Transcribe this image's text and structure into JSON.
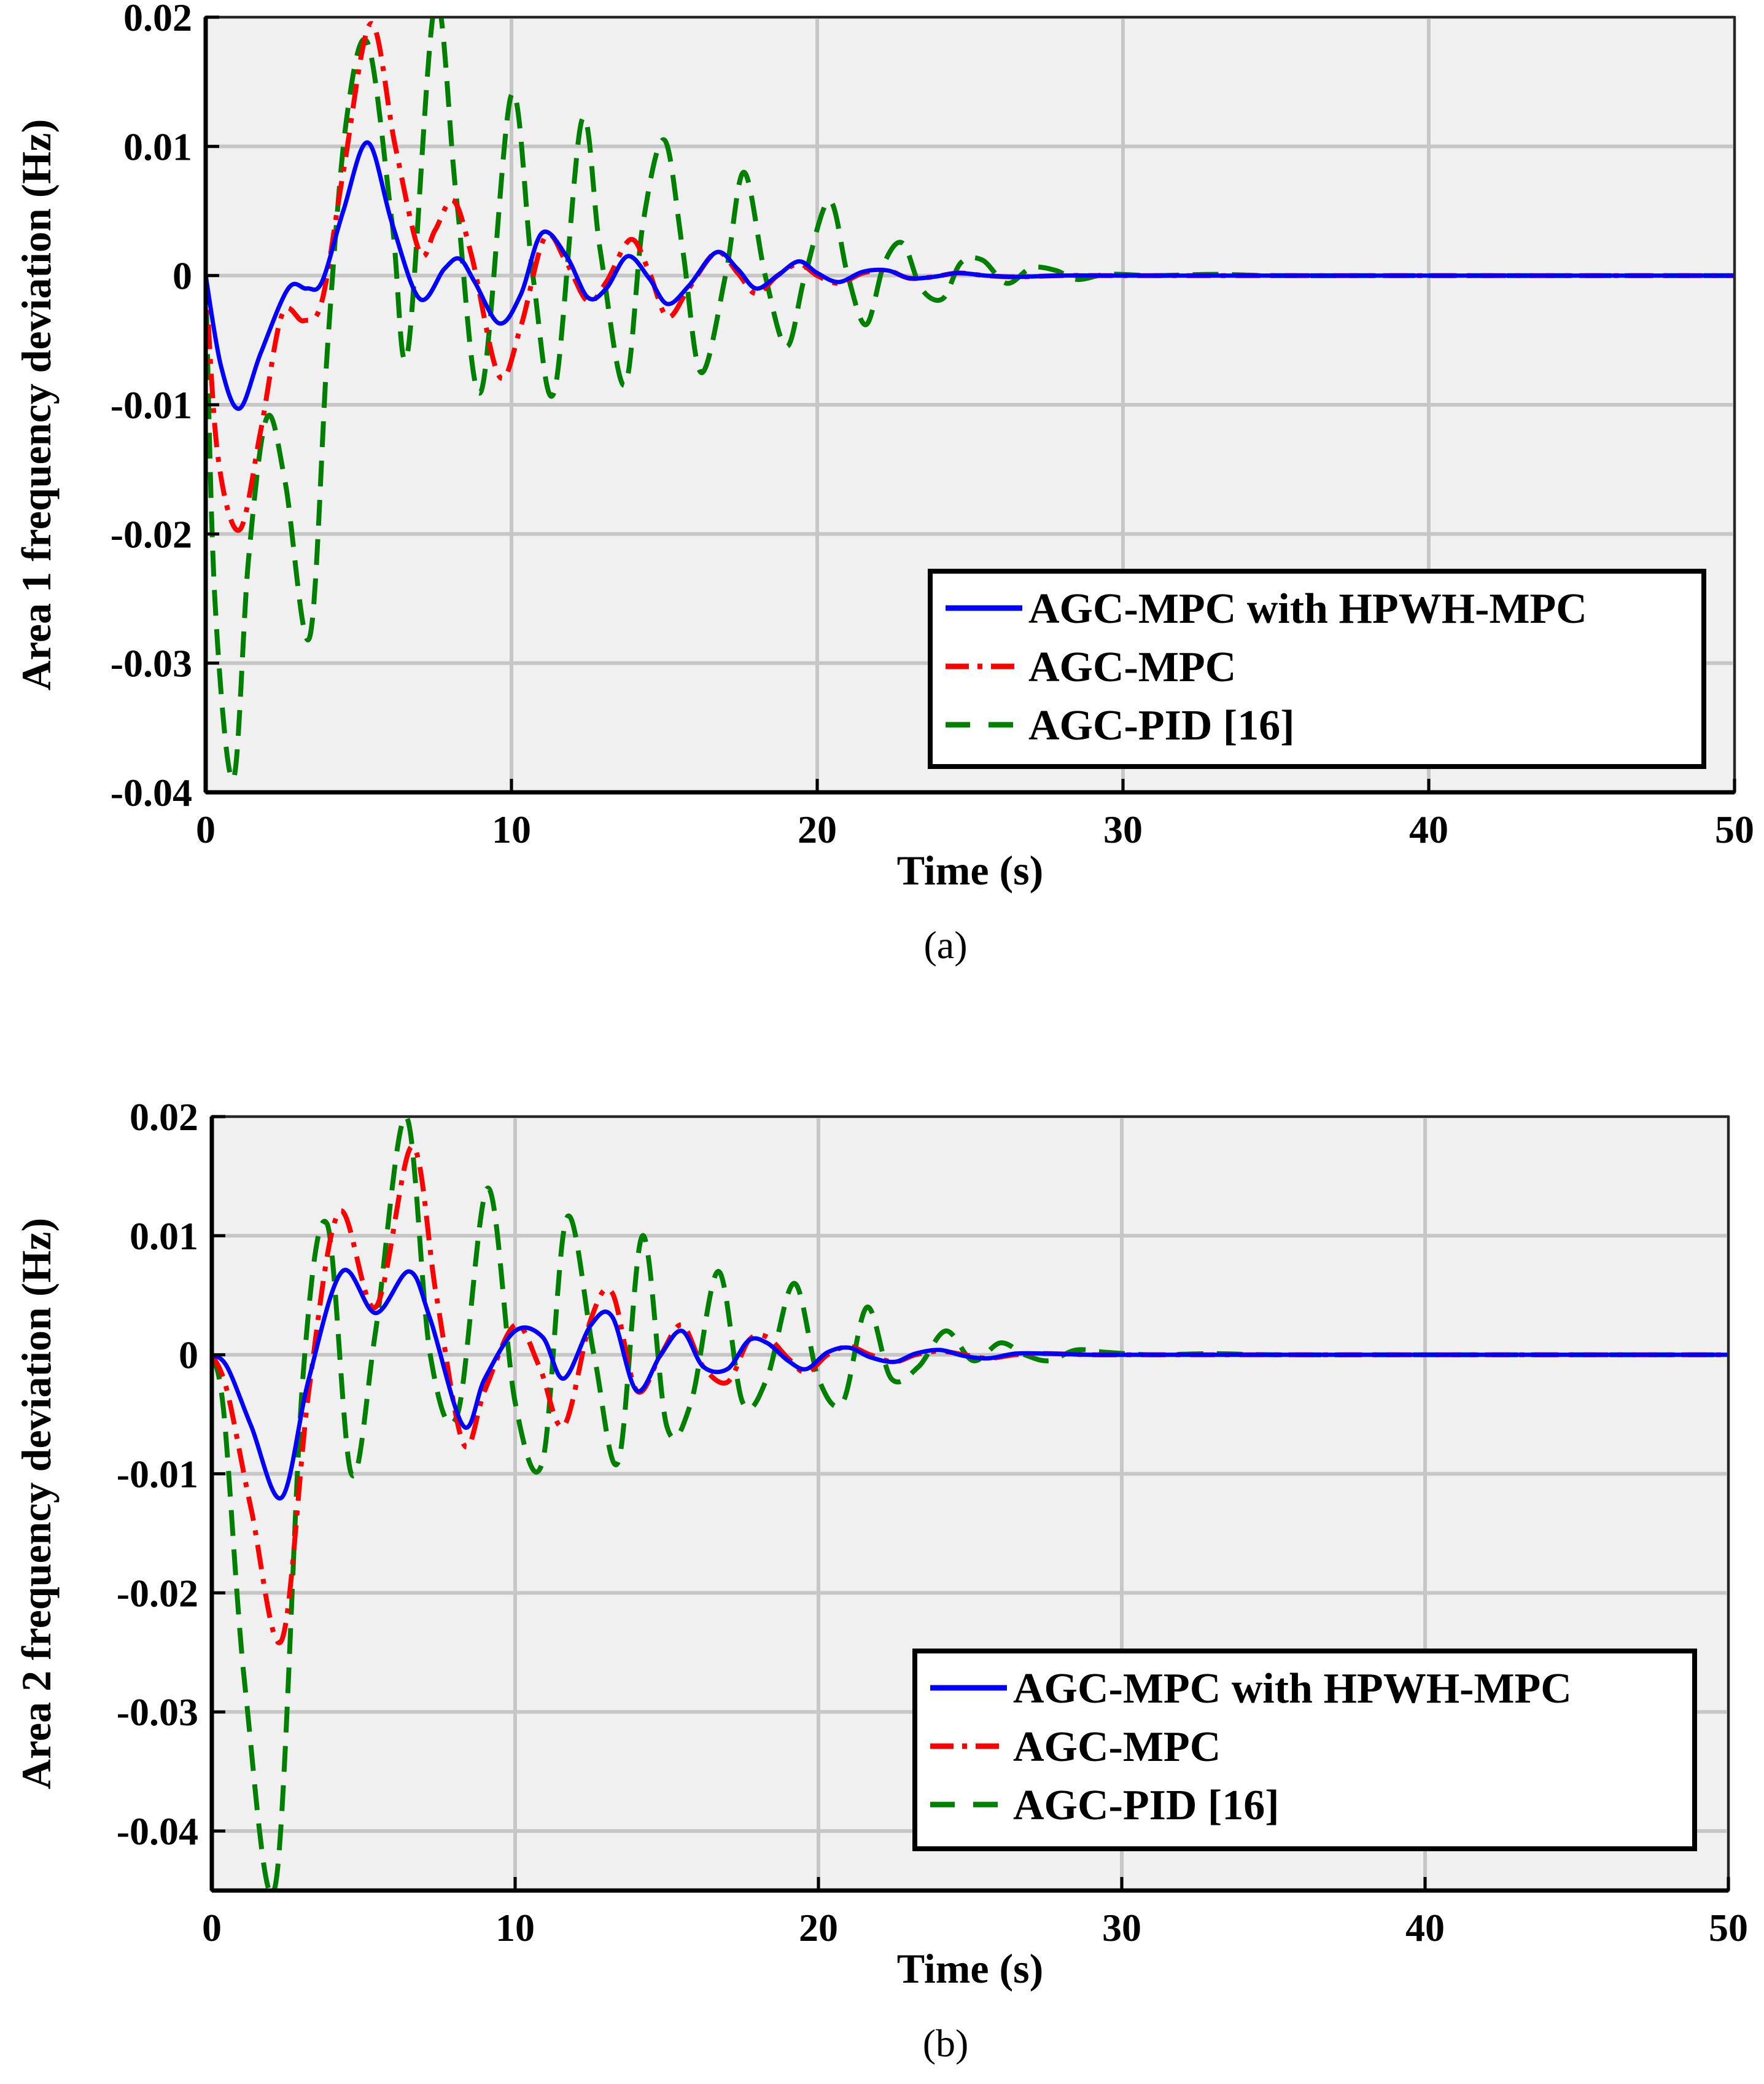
{
  "chart_data": [
    {
      "type": "line",
      "caption": "(a)",
      "xlabel": "Time (s)",
      "ylabel": "Area 1 frequency deviation (Hz)",
      "xlim": [
        0,
        50
      ],
      "ylim": [
        -0.04,
        0.02
      ],
      "xticks": [
        0,
        10,
        20,
        30,
        40,
        50
      ],
      "xtick_labels": [
        "0",
        "10",
        "20",
        "30",
        "40",
        "50"
      ],
      "yticks": [
        0.02,
        0.01,
        0,
        -0.01,
        -0.02,
        -0.03,
        -0.04
      ],
      "ytick_labels": [
        "0.02",
        "0.01",
        "0",
        "-0.01",
        "-0.02",
        "-0.03",
        "-0.04"
      ],
      "grid": true,
      "legend_position": "lower-right",
      "series": [
        {
          "name": "AGC-MPC with HPWH-MPC",
          "color": "#0000ff",
          "style": "solid",
          "x": [
            0,
            0.5,
            1.1,
            1.8,
            2.7,
            3.3,
            3.8,
            4.5,
            5.3,
            6.1,
            7.0,
            7.8,
            8.3,
            8.8,
            9.6,
            10.3,
            11.0,
            11.8,
            12.5,
            13.1,
            13.8,
            14.5,
            15.1,
            15.8,
            16.7,
            17.4,
            18.0,
            18.7,
            19.4,
            20.0,
            20.7,
            21.5,
            22.3,
            23.0,
            23.8,
            24.6,
            25.5,
            26.5,
            28,
            30,
            35,
            40,
            45,
            50
          ],
          "values": [
            0,
            -0.007,
            -0.0103,
            -0.006,
            -0.001,
            -0.001,
            -0.0005,
            0.005,
            0.0103,
            0.004,
            -0.0018,
            0.0005,
            0.0013,
            -0.0005,
            -0.0037,
            -0.0015,
            0.0033,
            0.0015,
            -0.0017,
            -0.001,
            0.0015,
            -0.0002,
            -0.0022,
            -0.0008,
            0.0018,
            0.0005,
            -0.001,
            0.0,
            0.0011,
            0.0002,
            -0.0005,
            0.0003,
            0.0004,
            -0.0002,
            -0.0001,
            0.0002,
            0.0,
            -0.0001,
            0.0,
            0.0,
            0.0,
            0.0,
            0.0,
            0.0
          ]
        },
        {
          "name": "AGC-MPC",
          "color": "#ff0000",
          "style": "dash-dot",
          "x": [
            0,
            0.4,
            1.1,
            1.8,
            2.5,
            3.2,
            3.8,
            4.5,
            5.4,
            6.2,
            7.0,
            7.5,
            8.1,
            8.7,
            9.6,
            10.3,
            11.1,
            11.8,
            12.5,
            13.1,
            13.9,
            14.5,
            15.1,
            15.8,
            16.7,
            17.4,
            18.0,
            18.7,
            19.4,
            20.0,
            20.7,
            21.5,
            22.3,
            23.0,
            23.8,
            24.6,
            25.5,
            26.5,
            28,
            30,
            35,
            40,
            45,
            50
          ],
          "values": [
            0,
            -0.014,
            -0.0197,
            -0.012,
            -0.003,
            -0.0035,
            -0.002,
            0.008,
            0.0195,
            0.01,
            0.0018,
            0.0035,
            0.0058,
            0.0015,
            -0.0078,
            -0.004,
            0.003,
            0.001,
            -0.002,
            -0.0005,
            0.0028,
            0.0003,
            -0.0032,
            -0.001,
            0.0018,
            0.0002,
            -0.0014,
            0.0,
            0.0009,
            0.0,
            -0.0006,
            0.0002,
            0.0004,
            -0.0002,
            -0.0001,
            0.0002,
            0.0,
            -0.0001,
            0.0,
            0.0,
            0.0,
            0.0,
            0.0,
            0.0
          ]
        },
        {
          "name": "AGC-PID [16]",
          "color": "#008000",
          "style": "dashed",
          "x": [
            0,
            0.3,
            0.9,
            1.4,
            2.0,
            2.6,
            3.4,
            4.0,
            4.6,
            5.3,
            6.1,
            6.6,
            7.5,
            8.2,
            9.0,
            10.0,
            10.7,
            11.4,
            12.3,
            12.9,
            13.7,
            14.3,
            15.0,
            15.6,
            16.2,
            17.0,
            17.6,
            18.3,
            19.0,
            19.6,
            20.4,
            21.0,
            21.6,
            22.2,
            22.8,
            23.4,
            24.1,
            24.7,
            25.4,
            26.2,
            27.0,
            27.8,
            28.5,
            29.5,
            31,
            33,
            35,
            40,
            45,
            50
          ],
          "values": [
            0,
            -0.025,
            -0.039,
            -0.022,
            -0.011,
            -0.016,
            -0.028,
            -0.005,
            0.012,
            0.018,
            0.004,
            -0.006,
            0.021,
            0.006,
            -0.009,
            0.014,
            0.0,
            -0.009,
            0.012,
            0.002,
            -0.0085,
            0.004,
            0.0105,
            0.002,
            -0.0075,
            0.0,
            0.008,
            0.0,
            -0.0055,
            0.0,
            0.0058,
            0.0,
            -0.0038,
            0.001,
            0.0025,
            -0.001,
            -0.0018,
            0.001,
            0.0012,
            -0.0006,
            0.0006,
            0.0004,
            -0.0003,
            0.0001,
            0.0,
            0.0001,
            0.0,
            0.0,
            0.0,
            0.0
          ]
        }
      ]
    },
    {
      "type": "line",
      "caption": "(b)",
      "xlabel": "Time (s)",
      "ylabel": "Area 2 frequency deviation (Hz)",
      "xlim": [
        0,
        50
      ],
      "ylim": [
        -0.045,
        0.02
      ],
      "xticks": [
        0,
        10,
        20,
        30,
        40,
        50
      ],
      "xtick_labels": [
        "0",
        "10",
        "20",
        "30",
        "40",
        "50"
      ],
      "yticks": [
        0.02,
        0.01,
        0,
        -0.01,
        -0.02,
        -0.03,
        -0.04
      ],
      "ytick_labels": [
        "0.02",
        "0.01",
        "0",
        "-0.01",
        "-0.02",
        "-0.03",
        "-0.04"
      ],
      "grid": true,
      "legend_position": "lower-right",
      "series": [
        {
          "name": "AGC-MPC with HPWH-MPC",
          "color": "#0000ff",
          "style": "solid",
          "x": [
            0,
            0.5,
            1.3,
            2.3,
            3.2,
            4.3,
            5.4,
            6.5,
            7.2,
            8.3,
            9.0,
            10.0,
            10.9,
            11.6,
            12.5,
            13.2,
            14.0,
            14.8,
            15.5,
            16.2,
            17.0,
            17.7,
            18.3,
            19.0,
            19.6,
            20.3,
            21.0,
            21.7,
            22.5,
            23.2,
            24.0,
            24.8,
            25.6,
            26.5,
            27.5,
            29,
            31,
            35,
            40,
            45,
            50
          ],
          "values": [
            0,
            -0.001,
            -0.006,
            -0.012,
            -0.002,
            0.007,
            0.0035,
            0.007,
            0.003,
            -0.006,
            -0.002,
            0.002,
            0.0015,
            -0.002,
            0.0025,
            0.0032,
            -0.003,
            0.0,
            0.002,
            -0.001,
            -0.0012,
            0.0012,
            0.001,
            -0.0005,
            -0.0012,
            0.0002,
            0.0006,
            -0.0002,
            -0.0006,
            0.0001,
            0.0004,
            -0.0001,
            -0.0003,
            0.0001,
            0.0001,
            0.0,
            0.0,
            0.0,
            0.0,
            0.0,
            0.0
          ]
        },
        {
          "name": "AGC-MPC",
          "color": "#ff0000",
          "style": "dash-dot",
          "x": [
            0,
            0.5,
            1.3,
            2.3,
            3.2,
            4.2,
            5.4,
            6.6,
            7.4,
            8.3,
            9.0,
            10.0,
            10.8,
            11.6,
            12.5,
            13.2,
            14.0,
            14.8,
            15.5,
            16.2,
            17.0,
            17.7,
            18.3,
            19.0,
            19.6,
            20.3,
            21.0,
            21.7,
            22.5,
            23.2,
            24.0,
            24.8,
            25.6,
            26.5,
            27.5,
            29,
            31,
            35,
            40,
            45,
            50
          ],
          "values": [
            0,
            -0.003,
            -0.013,
            -0.024,
            -0.003,
            0.012,
            0.004,
            0.0175,
            0.005,
            -0.0075,
            -0.003,
            0.0025,
            -0.001,
            -0.006,
            0.003,
            0.0052,
            -0.003,
            0.0,
            0.0025,
            -0.001,
            -0.0023,
            0.0012,
            0.0015,
            -0.0003,
            -0.0015,
            0.0,
            0.0007,
            0.0,
            -0.0006,
            0.0,
            0.0003,
            0.0,
            -0.0003,
            0.0,
            0.0001,
            0.0,
            0.0,
            0.0,
            0.0,
            0.0,
            0.0
          ]
        },
        {
          "name": "AGC-PID [16]",
          "color": "#008000",
          "style": "dashed",
          "x": [
            0,
            0.4,
            1.1,
            2.1,
            3.0,
            3.8,
            4.6,
            5.4,
            6.4,
            7.2,
            8.1,
            9.1,
            10.0,
            10.9,
            11.7,
            12.6,
            13.4,
            14.2,
            15.0,
            15.8,
            16.7,
            17.5,
            18.3,
            19.2,
            20.0,
            20.8,
            21.6,
            22.4,
            23.3,
            24.2,
            25.1,
            26.0,
            26.8,
            27.6,
            28.5,
            29.5,
            31,
            33,
            35,
            40,
            45,
            50
          ],
          "values": [
            0,
            -0.005,
            -0.028,
            -0.0445,
            -0.002,
            0.011,
            -0.01,
            0.002,
            0.02,
            0.0,
            -0.005,
            0.014,
            -0.004,
            -0.009,
            0.0115,
            0.0,
            -0.009,
            0.01,
            -0.006,
            -0.004,
            0.007,
            -0.004,
            -0.002,
            0.006,
            -0.002,
            -0.004,
            0.004,
            -0.002,
            -0.001,
            0.002,
            -0.0005,
            0.001,
            0.0,
            -0.0005,
            0.0004,
            0.0002,
            0.0,
            0.0001,
            0.0,
            0.0,
            0.0,
            0.0
          ]
        }
      ]
    }
  ]
}
